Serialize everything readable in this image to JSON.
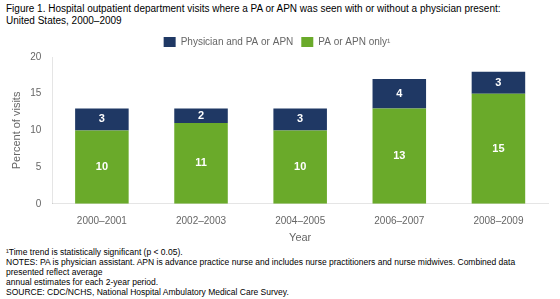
{
  "chart_data": {
    "type": "bar",
    "stacked": true,
    "title": [
      "Figure 1. Hospital outpatient department visits where a PA or APN was seen with or without a physician present:",
      "United States, 2000–2009"
    ],
    "categories": [
      "2000–2001",
      "2002–2003",
      "2004–2005",
      "2006–2007",
      "2008–2009"
    ],
    "series": [
      {
        "name": "PA or APN only¹",
        "color": "#6aaa2a",
        "values": [
          10,
          11,
          10,
          13,
          15
        ]
      },
      {
        "name": "Physician and PA or APN",
        "color": "#1f3864",
        "values": [
          3,
          2,
          3,
          4,
          3
        ]
      }
    ],
    "xlabel": "Year",
    "ylabel": "Percent of visits",
    "ylim": [
      0,
      20
    ],
    "yticks": [
      0,
      5,
      10,
      15,
      20
    ],
    "grid": false,
    "legend": "top",
    "data_labels": true,
    "footnotes": [
      "¹Time trend is statistically significant (p < 0.05).",
      "NOTES: PA is physician assistant. APN is advance practice nurse and includes nurse practitioners and nurse midwives. Combined data presented reflect average",
      "annual estimates for each 2-year period.",
      "SOURCE: CDC/NCHS, National Hospital Ambulatory Medical Care Survey."
    ]
  }
}
